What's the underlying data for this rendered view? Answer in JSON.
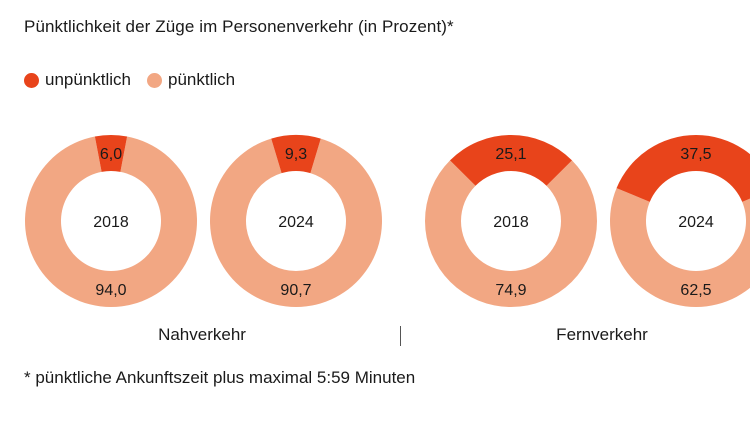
{
  "title": "Pünktlichkeit der Züge im Personenverkehr (in Prozent)*",
  "legend": [
    {
      "label": "unpünktlich",
      "color": "#e8441b"
    },
    {
      "label": "pünktlich",
      "color": "#f2a783"
    }
  ],
  "footnote": "* pünktliche Ankunftszeit plus maximal 5:59 Minuten",
  "groups": [
    "Nahverkehr",
    "Fernverkehr"
  ],
  "chart_data": {
    "type": "donut",
    "title": "Pünktlichkeit der Züge im Personenverkehr (in Prozent)*",
    "colors": {
      "unpuenktlich": "#e8441b",
      "puenktlich": "#f2a783"
    },
    "charts": [
      {
        "group": "Nahverkehr",
        "year": "2018",
        "unpuenktlich": 6.0,
        "puenktlich": 94.0,
        "unpuenktlich_label": "6,0",
        "puenktlich_label": "94,0"
      },
      {
        "group": "Nahverkehr",
        "year": "2024",
        "unpuenktlich": 9.3,
        "puenktlich": 90.7,
        "unpuenktlich_label": "9,3",
        "puenktlich_label": "90,7"
      },
      {
        "group": "Fernverkehr",
        "year": "2018",
        "unpuenktlich": 25.1,
        "puenktlich": 74.9,
        "unpuenktlich_label": "25,1",
        "puenktlich_label": "74,9"
      },
      {
        "group": "Fernverkehr",
        "year": "2024",
        "unpuenktlich": 37.5,
        "puenktlich": 62.5,
        "unpuenktlich_label": "37,5",
        "puenktlich_label": "62,5"
      }
    ]
  }
}
